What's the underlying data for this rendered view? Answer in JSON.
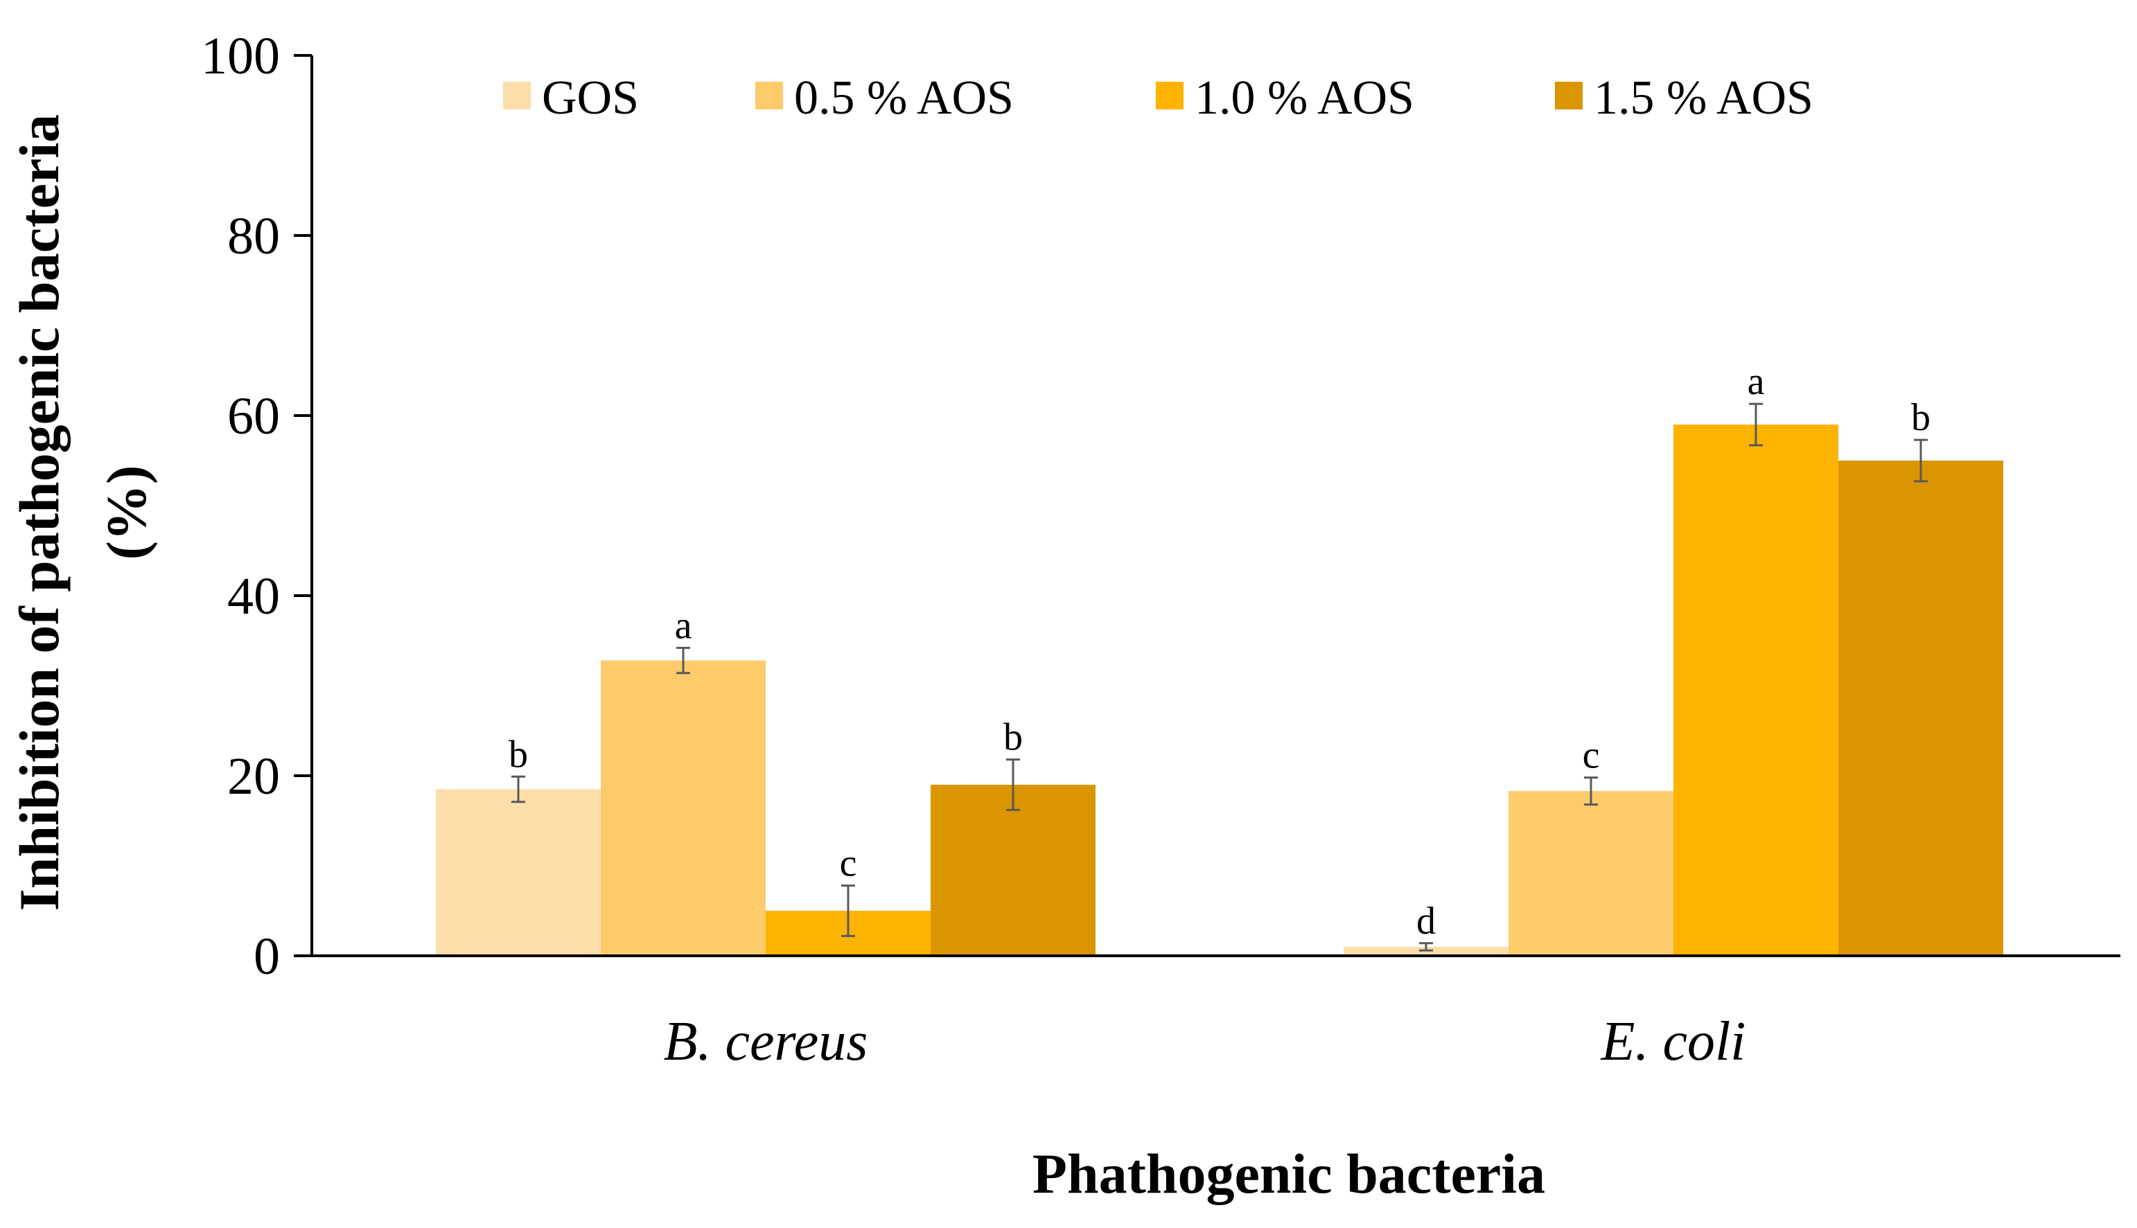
{
  "chart_data": {
    "type": "bar",
    "title": "",
    "xlabel": "Phathogenic bacteria",
    "ylabel_line1": "Inhibition of pathogenic bacteria",
    "ylabel_line2": "(%)",
    "ylim": [
      0,
      100
    ],
    "yticks": [
      0,
      20,
      40,
      60,
      80,
      100
    ],
    "ytick_labels": [
      "0",
      "20",
      "40",
      "60",
      "80",
      "100"
    ],
    "grid": false,
    "legend_position": "top",
    "categories": [
      "B. cereus",
      "E. coli"
    ],
    "series": [
      {
        "name": "GOS",
        "color": "#FDDEAA",
        "values": [
          18.5,
          1.0
        ],
        "errors": [
          1.4,
          0.4
        ],
        "labels": [
          "b",
          "d"
        ]
      },
      {
        "name": "0.5 % AOS",
        "color": "#FECB6B",
        "values": [
          32.8,
          18.3
        ],
        "errors": [
          1.4,
          1.5
        ],
        "labels": [
          "a",
          "c"
        ]
      },
      {
        "name": "1.0 % AOS",
        "color": "#FEB300",
        "values": [
          5.0,
          59.0
        ],
        "errors": [
          2.8,
          2.3
        ],
        "labels": [
          "c",
          "a"
        ]
      },
      {
        "name": "1.5 % AOS",
        "color": "#DA9600",
        "values": [
          19.0,
          55.0
        ],
        "errors": [
          2.8,
          2.3
        ],
        "labels": [
          "b",
          "b"
        ]
      }
    ],
    "colors": {
      "axis": "#000000",
      "error_bar": "#595959",
      "background": "#ffffff"
    }
  }
}
